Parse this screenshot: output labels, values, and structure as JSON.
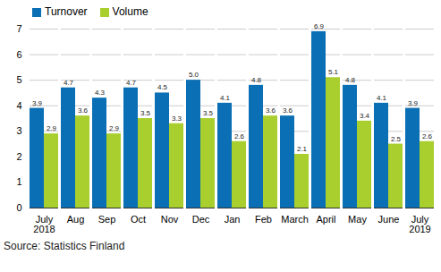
{
  "chart_data": {
    "type": "bar",
    "caption": "Source: Statistics Finland",
    "categories": [
      "July\n2018",
      "Aug",
      "Sep",
      "Oct",
      "Nov",
      "Dec",
      "Jan",
      "Feb",
      "March",
      "April",
      "May",
      "June",
      "July\n2019"
    ],
    "series": [
      {
        "name": "Turnover",
        "color": "#0a6fb4",
        "values": [
          3.9,
          4.7,
          4.3,
          4.7,
          4.5,
          5.0,
          4.1,
          4.8,
          3.6,
          6.9,
          4.8,
          4.1,
          3.9
        ],
        "value_labels": [
          "3.9",
          "4.7",
          "4.3",
          "4.7",
          "4.5",
          "5.0",
          "4.1",
          "4.8",
          "3.6",
          "6.9",
          "4.8",
          "4.1",
          "3.9"
        ]
      },
      {
        "name": "Volume",
        "color": "#a8cf2e",
        "values": [
          2.9,
          3.6,
          2.9,
          3.5,
          3.3,
          3.5,
          2.6,
          3.6,
          2.1,
          5.1,
          3.4,
          2.5,
          2.6
        ],
        "value_labels": [
          "2.9",
          "3.6",
          "2.9",
          "3.5",
          "3.3",
          "3.5",
          "2.6",
          "3.6",
          "2.1",
          "5.1",
          "3.4",
          "2.5",
          "2.6"
        ]
      }
    ],
    "ylim": [
      0,
      7
    ],
    "yticks": [
      0,
      1,
      2,
      3,
      4,
      5,
      6,
      7
    ],
    "grid": true,
    "legend": "top-left",
    "data_labels": true
  }
}
